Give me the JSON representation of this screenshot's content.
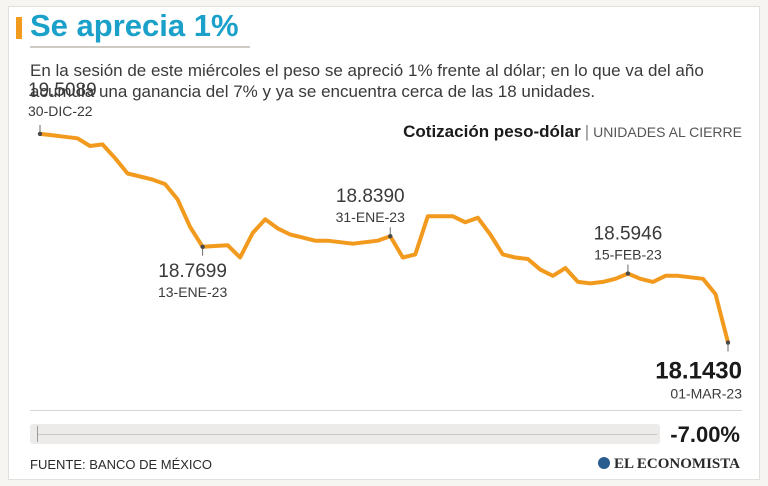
{
  "header": {
    "title": "Se aprecia 1%",
    "lead_line1": "En la sesión de este miércoles el peso se apreció 1% frente al dólar; en lo que va del año",
    "lead_line2": "acumula una ganancia del 7% y ya se encuentra cerca de las 18 unidades."
  },
  "chart_heading": {
    "main": "Cotización peso-dólar",
    "separator": "|",
    "sub": "UNIDADES AL CIERRE"
  },
  "chart_data": {
    "type": "line",
    "title": "Cotización peso-dólar",
    "ylabel": "UNIDADES AL CIERRE",
    "xlabel": "",
    "ylim": [
      17.95,
      19.6
    ],
    "series": [
      {
        "name": "Peso-dólar",
        "color": "#f29a1e",
        "values": [
          19.5089,
          19.5,
          19.49,
          19.48,
          19.43,
          19.44,
          19.35,
          19.25,
          19.23,
          19.21,
          19.18,
          19.08,
          18.9,
          18.7699,
          18.775,
          18.78,
          18.7,
          18.86,
          18.95,
          18.89,
          18.85,
          18.83,
          18.81,
          18.81,
          18.8,
          18.79,
          18.8,
          18.81,
          18.839,
          18.7,
          18.72,
          18.97,
          18.97,
          18.97,
          18.93,
          18.96,
          18.85,
          18.72,
          18.7,
          18.69,
          18.62,
          18.58,
          18.63,
          18.54,
          18.53,
          18.54,
          18.56,
          18.5946,
          18.56,
          18.54,
          18.58,
          18.58,
          18.57,
          18.56,
          18.46,
          18.143
        ]
      }
    ],
    "annotations": [
      {
        "index": 0,
        "value": "19.5089",
        "date": "30-DIC-22"
      },
      {
        "index": 13,
        "value": "18.7699",
        "date": "13-ENE-23"
      },
      {
        "index": 28,
        "value": "18.8390",
        "date": "31-ENE-23"
      },
      {
        "index": 47,
        "value": "18.5946",
        "date": "15-FEB-23"
      },
      {
        "index": 55,
        "value": "18.1430",
        "date": "01-MAR-23"
      }
    ]
  },
  "summary": {
    "change": "-7.00%"
  },
  "footer": {
    "source": "FUENTE: BANCO DE MÉXICO",
    "brand": "EL ECONOMISTA"
  }
}
